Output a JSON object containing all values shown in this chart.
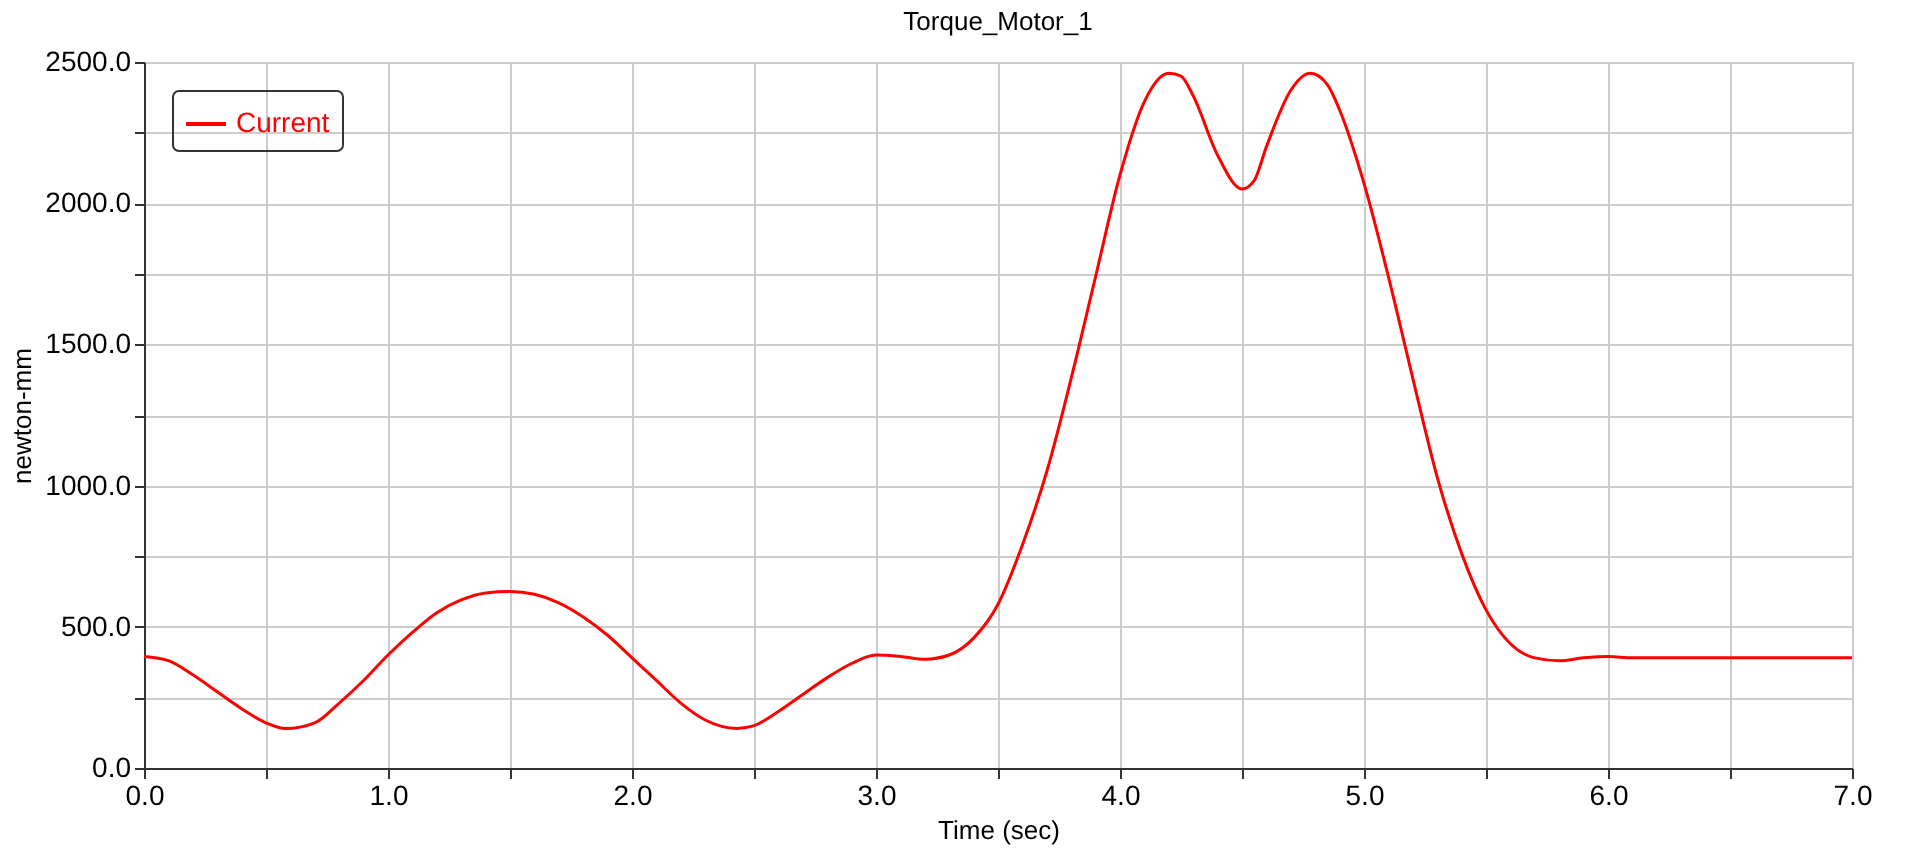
{
  "chart_data": {
    "type": "line",
    "title": "Torque_Motor_1",
    "xlabel": "Time (sec)",
    "ylabel": "newton-mm",
    "xlim": [
      0,
      7
    ],
    "ylim": [
      0,
      2500
    ],
    "xticks": [
      {
        "value": 0,
        "label": "0.0"
      },
      {
        "value": 0.5,
        "label": null
      },
      {
        "value": 1,
        "label": "1.0"
      },
      {
        "value": 1.5,
        "label": null
      },
      {
        "value": 2,
        "label": "2.0"
      },
      {
        "value": 2.5,
        "label": null
      },
      {
        "value": 3,
        "label": "3.0"
      },
      {
        "value": 3.5,
        "label": null
      },
      {
        "value": 4,
        "label": "4.0"
      },
      {
        "value": 4.5,
        "label": null
      },
      {
        "value": 5,
        "label": "5.0"
      },
      {
        "value": 5.5,
        "label": null
      },
      {
        "value": 6,
        "label": "6.0"
      },
      {
        "value": 6.5,
        "label": null
      },
      {
        "value": 7,
        "label": "7.0"
      }
    ],
    "yticks": [
      {
        "value": 0,
        "label": "0.0"
      },
      {
        "value": 250,
        "label": null
      },
      {
        "value": 500,
        "label": "500.0"
      },
      {
        "value": 750,
        "label": null
      },
      {
        "value": 1000,
        "label": "1000.0"
      },
      {
        "value": 1250,
        "label": null
      },
      {
        "value": 1500,
        "label": "1500.0"
      },
      {
        "value": 1750,
        "label": null
      },
      {
        "value": 2000,
        "label": "2000.0"
      },
      {
        "value": 2250,
        "label": null
      },
      {
        "value": 2500,
        "label": "2500.0"
      }
    ],
    "grid": true,
    "legend": "top left",
    "marker": "none",
    "line_style": "solid",
    "x": [
      0,
      0.1,
      0.2,
      0.3,
      0.4,
      0.5,
      0.58,
      0.7,
      0.8,
      0.9,
      1.0,
      1.1,
      1.2,
      1.3,
      1.4,
      1.5,
      1.6,
      1.7,
      1.8,
      1.9,
      2.0,
      2.1,
      2.2,
      2.3,
      2.43,
      2.5,
      2.6,
      2.7,
      2.8,
      2.9,
      3.0,
      3.1,
      3.2,
      3.3,
      3.4,
      3.5,
      3.6,
      3.7,
      3.8,
      3.9,
      4.0,
      4.1,
      4.2,
      4.25,
      4.3,
      4.4,
      4.5,
      4.55,
      4.6,
      4.7,
      4.78,
      4.85,
      4.9,
      5.0,
      5.1,
      5.2,
      5.3,
      5.4,
      5.5,
      5.6,
      5.7,
      5.8,
      5.9,
      6.0,
      6.1,
      7.0
    ],
    "series": [
      {
        "name": "Current",
        "color": "#ff0000",
        "values": [
          395,
          380,
          330,
          270,
          210,
          160,
          140,
          160,
          230,
          310,
          400,
          480,
          550,
          595,
          620,
          625,
          615,
          585,
          535,
          470,
          390,
          310,
          230,
          170,
          140,
          150,
          200,
          260,
          320,
          370,
          400,
          395,
          385,
          400,
          460,
          580,
          790,
          1050,
          1380,
          1740,
          2100,
          2360,
          2460,
          2450,
          2380,
          2170,
          2050,
          2080,
          2200,
          2400,
          2460,
          2420,
          2330,
          2070,
          1740,
          1380,
          1030,
          760,
          560,
          440,
          390,
          380,
          390,
          395,
          390,
          390
        ]
      }
    ]
  }
}
